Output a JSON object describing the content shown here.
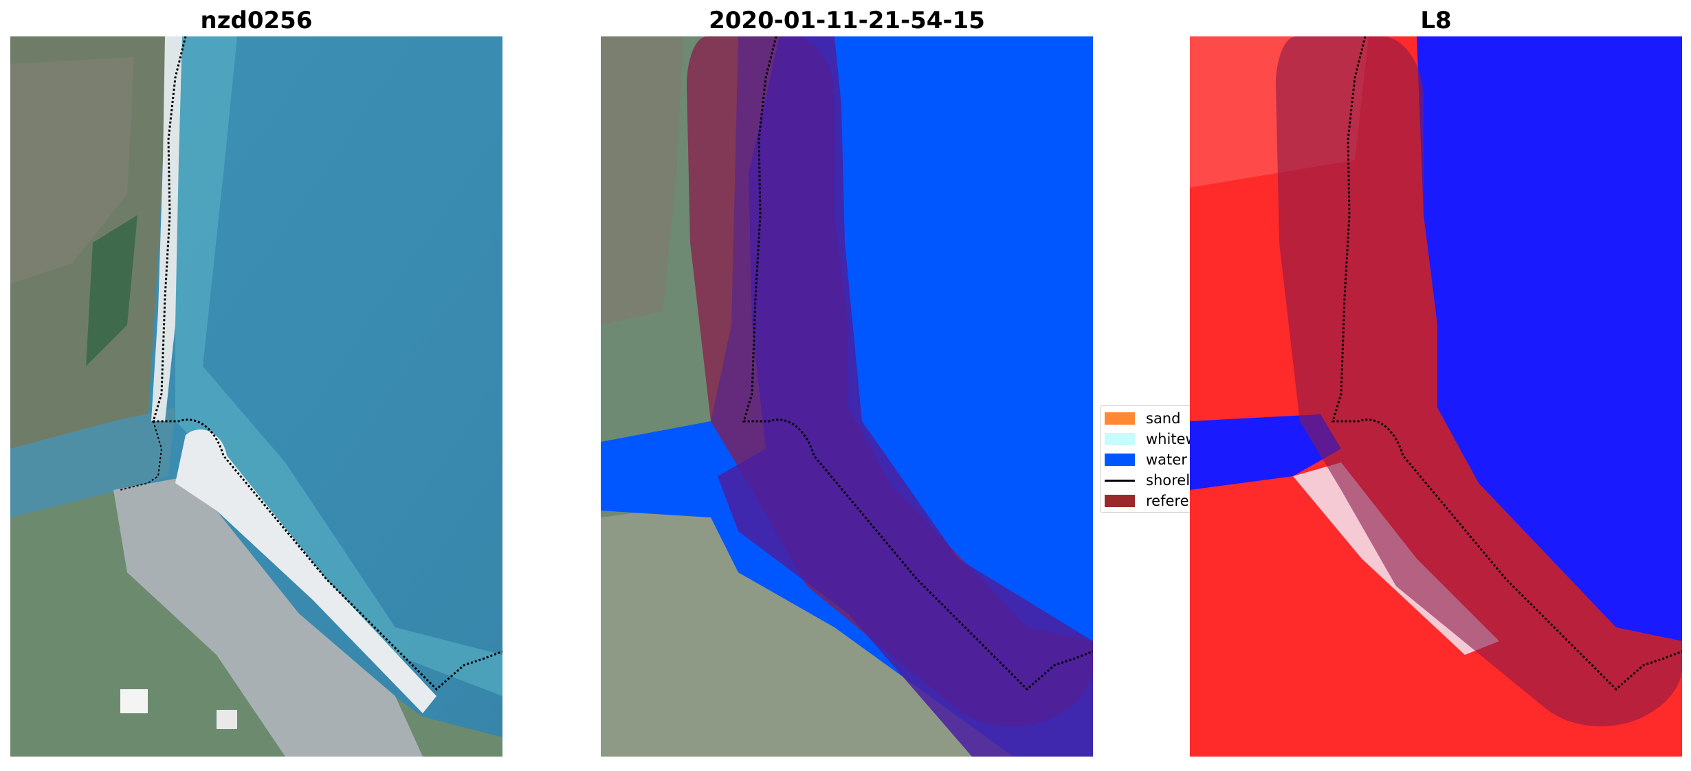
{
  "panels": [
    {
      "title": "nzd0256"
    },
    {
      "title": "2020-01-11-21-54-15"
    },
    {
      "title": "L8"
    }
  ],
  "legend": {
    "items": [
      {
        "label": "sand",
        "color": "#ff8a33",
        "kind": "patch"
      },
      {
        "label": "whitewater",
        "color": "#c8fbfb",
        "kind": "patch"
      },
      {
        "label": "water",
        "color": "#0057ff",
        "kind": "patch"
      },
      {
        "label": "shoreline",
        "color": "#000000",
        "kind": "line"
      },
      {
        "label": "reference",
        "color": "#9a2a2a",
        "kind": "patch"
      }
    ]
  },
  "colors": {
    "sea": "#3b8fb0",
    "land": "#6e8a72",
    "water_class": "#0057ff",
    "buffer_overlay": "#8b1a4a",
    "index_land": "#ff2020",
    "index_water": "#1a1aff"
  }
}
